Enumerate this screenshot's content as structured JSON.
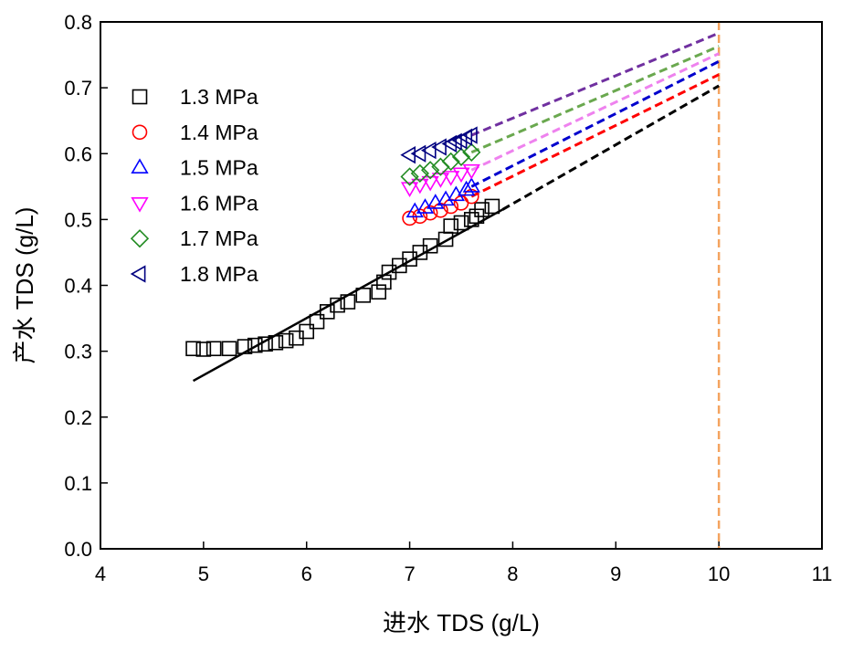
{
  "chart_data": {
    "type": "scatter",
    "xlabel": "进水 TDS (g/L)",
    "ylabel": "产水 TDS (g/L)",
    "xlim": [
      4,
      11
    ],
    "ylim": [
      0,
      0.8
    ],
    "x_ticks": [
      4,
      5,
      6,
      7,
      8,
      9,
      10,
      11
    ],
    "y_ticks": [
      0.0,
      0.1,
      0.2,
      0.3,
      0.4,
      0.5,
      0.6,
      0.7,
      0.8
    ],
    "x_tick_labels": [
      "4",
      "5",
      "6",
      "7",
      "8",
      "9",
      "10",
      "11"
    ],
    "y_tick_labels": [
      "0.0",
      "0.1",
      "0.2",
      "0.3",
      "0.4",
      "0.5",
      "0.6",
      "0.7",
      "0.8"
    ],
    "grid": false,
    "legend_position": "top-left",
    "reference_line": {
      "x": 10,
      "color": "#f4a460",
      "style": "dashed"
    },
    "series": [
      {
        "name": "1.3 MPa",
        "marker": "square",
        "color": "#000000",
        "x": [
          4.9,
          5.0,
          5.1,
          5.25,
          5.4,
          5.5,
          5.6,
          5.7,
          5.8,
          5.9,
          6.0,
          6.1,
          6.2,
          6.3,
          6.4,
          6.55,
          6.7,
          6.75,
          6.8,
          6.9,
          7.0,
          7.1,
          7.2,
          7.35,
          7.4,
          7.5,
          7.6,
          7.65,
          7.7,
          7.8
        ],
        "y": [
          0.304,
          0.303,
          0.304,
          0.304,
          0.307,
          0.309,
          0.311,
          0.313,
          0.316,
          0.32,
          0.33,
          0.345,
          0.36,
          0.37,
          0.375,
          0.385,
          0.39,
          0.405,
          0.42,
          0.43,
          0.44,
          0.45,
          0.46,
          0.47,
          0.49,
          0.495,
          0.5,
          0.505,
          0.515,
          0.52
        ],
        "fit": {
          "color": "#000000",
          "solid": [
            4.9,
            7.9
          ],
          "dashed": [
            7.9,
            10
          ],
          "y_at": [
            0.255,
            0.515,
            0.703
          ]
        }
      },
      {
        "name": "1.4 MPa",
        "marker": "circle",
        "color": "#ff0000",
        "x": [
          7.0,
          7.1,
          7.2,
          7.3,
          7.4,
          7.5,
          7.6
        ],
        "y": [
          0.502,
          0.505,
          0.51,
          0.514,
          0.52,
          0.525,
          0.535
        ],
        "fit": {
          "color": "#ff0000",
          "dashed": [
            7.6,
            10
          ],
          "y_at": [
            0.535,
            0.72
          ]
        }
      },
      {
        "name": "1.5 MPa",
        "marker": "triangle-up",
        "color": "#0000ff",
        "x": [
          7.05,
          7.15,
          7.25,
          7.35,
          7.45,
          7.55,
          7.6
        ],
        "y": [
          0.512,
          0.518,
          0.525,
          0.53,
          0.537,
          0.545,
          0.55
        ],
        "fit": {
          "color": "#0000cd",
          "dashed": [
            7.6,
            10
          ],
          "y_at": [
            0.55,
            0.74
          ]
        }
      },
      {
        "name": "1.6 MPa",
        "marker": "triangle-down",
        "color": "#ff00ff",
        "x": [
          7.0,
          7.1,
          7.2,
          7.3,
          7.4,
          7.5,
          7.6
        ],
        "y": [
          0.548,
          0.553,
          0.557,
          0.562,
          0.565,
          0.57,
          0.575
        ],
        "fit": {
          "color": "#ee82ee",
          "dashed": [
            7.6,
            10
          ],
          "y_at": [
            0.575,
            0.752
          ]
        }
      },
      {
        "name": "1.7 MPa",
        "marker": "diamond",
        "color": "#228b22",
        "x": [
          7.0,
          7.1,
          7.2,
          7.3,
          7.4,
          7.5,
          7.6
        ],
        "y": [
          0.565,
          0.57,
          0.575,
          0.58,
          0.588,
          0.595,
          0.602
        ],
        "fit": {
          "color": "#6aa84f",
          "dashed": [
            7.6,
            10
          ],
          "y_at": [
            0.602,
            0.763
          ]
        }
      },
      {
        "name": "1.8 MPa",
        "marker": "triangle-left",
        "color": "#000080",
        "x": [
          7.0,
          7.1,
          7.2,
          7.3,
          7.4,
          7.45,
          7.5,
          7.55,
          7.6
        ],
        "y": [
          0.598,
          0.6,
          0.605,
          0.61,
          0.615,
          0.618,
          0.62,
          0.625,
          0.628
        ],
        "fit": {
          "color": "#7030a0",
          "dashed": [
            7.6,
            10
          ],
          "y_at": [
            0.628,
            0.783
          ]
        }
      }
    ]
  }
}
